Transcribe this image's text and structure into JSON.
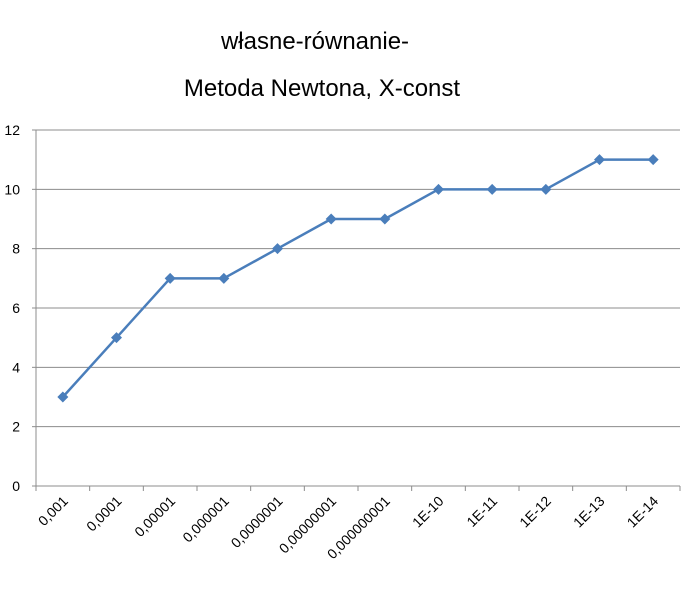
{
  "chart_data": {
    "type": "line",
    "title": "własne-równanie-",
    "subtitle": "Metoda Newtona, X-const",
    "xlabel": "",
    "ylabel": "",
    "categories": [
      "0,001",
      "0,0001",
      "0,00001",
      "0,000001",
      "0,0000001",
      "0,00000001",
      "0,000000001",
      "1E-10",
      "1E-11",
      "1E-12",
      "1E-13",
      "1E-14"
    ],
    "series": [
      {
        "values": [
          3,
          5,
          7,
          7,
          8,
          9,
          9,
          10,
          10,
          10,
          11,
          11
        ],
        "color": "#4a7ebb",
        "marker": "diamond"
      }
    ],
    "ylim": [
      0,
      12
    ],
    "yticks": [
      "0",
      "2",
      "4",
      "6",
      "8",
      "10",
      "12"
    ],
    "grid": true,
    "legend": "none"
  }
}
